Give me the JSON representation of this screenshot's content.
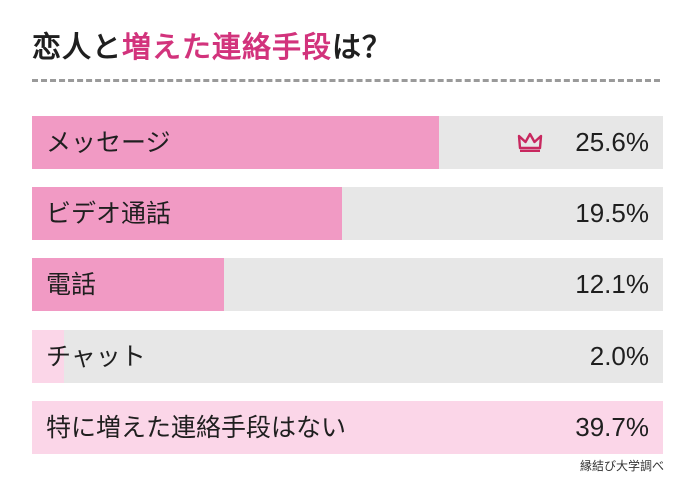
{
  "title": {
    "prefix": "恋人と",
    "highlight": "増えた連絡手段",
    "suffix": "は？"
  },
  "colors": {
    "primary": "#f19ac4",
    "light": "#fbd6e8",
    "track": "#e7e7e7",
    "accent": "#d2337c",
    "crown": "#c8285f"
  },
  "chart_data": {
    "type": "bar",
    "orientation": "horizontal",
    "categories": [
      "メッセージ",
      "ビデオ通話",
      "電話",
      "チャット",
      "特に増えた連絡手段はない"
    ],
    "values": [
      25.6,
      19.5,
      12.1,
      2.0,
      39.7
    ],
    "value_labels": [
      "25.6%",
      "19.5%",
      "12.1%",
      "2.0%",
      "39.7%"
    ],
    "unit": "%",
    "xlim": [
      0,
      39.7
    ],
    "top_item_icon": "crown-icon"
  },
  "source": "縁結び大学調べ"
}
